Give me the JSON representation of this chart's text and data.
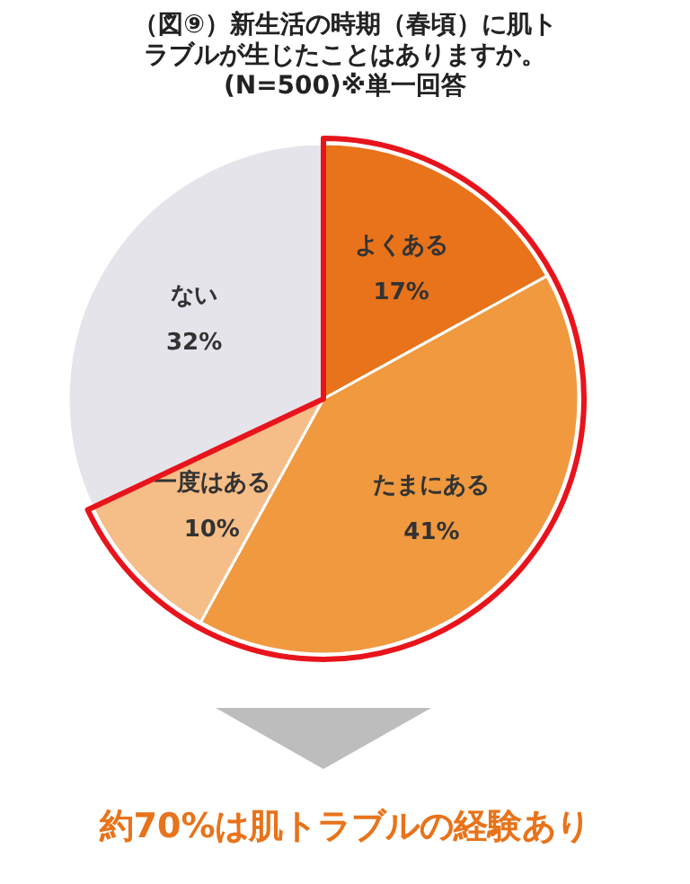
{
  "chart_data": {
    "type": "pie",
    "title": "（図⑨）新生活の時期（春頃）に肌トラブルが生じたことはありますか。",
    "subtitle": "(N=500)※単一回答",
    "categories": [
      "よくある",
      "たまにある",
      "一度はある",
      "ない"
    ],
    "values": [
      17,
      41,
      10,
      32
    ],
    "value_labels": [
      "17%",
      "41%",
      "10%",
      "32%"
    ],
    "colors": [
      "#e8731a",
      "#f0993f",
      "#f5bd87",
      "#e4e4ea"
    ],
    "annotations": [
      "約70%は肌トラブルの経験あり"
    ]
  }
}
